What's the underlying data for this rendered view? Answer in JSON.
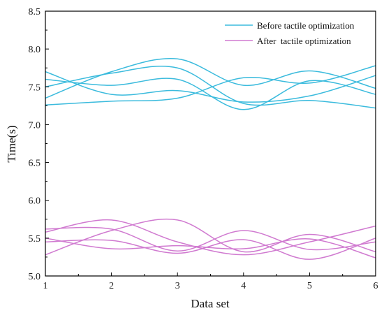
{
  "chart_data": {
    "type": "line",
    "xlabel": "Data set",
    "ylabel": "Time(s)",
    "xlim": [
      1,
      6
    ],
    "ylim": [
      5.0,
      8.5
    ],
    "xticks": [
      "1",
      "2",
      "3",
      "4",
      "5",
      "6"
    ],
    "yticks": [
      "5.0",
      "5.5",
      "6.0",
      "6.5",
      "7.0",
      "7.5",
      "8.0",
      "8.5"
    ],
    "grid": false,
    "legend_position": "top-right",
    "colors": {
      "before": "#3bbbdd",
      "after": "#d07ad0"
    },
    "legend": [
      {
        "label": "Before tactile optimization",
        "group": "before"
      },
      {
        "label": "After  tactile optimization",
        "group": "after"
      }
    ],
    "x": [
      1,
      2,
      3,
      4,
      5,
      6
    ],
    "series": [
      {
        "group": "before",
        "values": [
          7.26,
          7.31,
          7.35,
          7.62,
          7.55,
          7.78
        ]
      },
      {
        "group": "before",
        "values": [
          7.35,
          7.7,
          7.87,
          7.52,
          7.71,
          7.48
        ]
      },
      {
        "group": "before",
        "values": [
          7.6,
          7.52,
          7.6,
          7.2,
          7.58,
          7.4
        ]
      },
      {
        "group": "before",
        "values": [
          7.7,
          7.4,
          7.45,
          7.3,
          7.38,
          7.65
        ]
      },
      {
        "group": "before",
        "values": [
          7.5,
          7.68,
          7.75,
          7.28,
          7.32,
          7.22
        ]
      },
      {
        "group": "after",
        "values": [
          5.62,
          5.62,
          5.33,
          5.6,
          5.35,
          5.45
        ]
      },
      {
        "group": "after",
        "values": [
          5.28,
          5.6,
          5.74,
          5.32,
          5.55,
          5.32
        ]
      },
      {
        "group": "after",
        "values": [
          5.58,
          5.74,
          5.45,
          5.28,
          5.45,
          5.66
        ]
      },
      {
        "group": "after",
        "values": [
          5.45,
          5.47,
          5.3,
          5.48,
          5.22,
          5.5
        ]
      },
      {
        "group": "after",
        "values": [
          5.5,
          5.36,
          5.4,
          5.36,
          5.49,
          5.24
        ]
      }
    ]
  }
}
